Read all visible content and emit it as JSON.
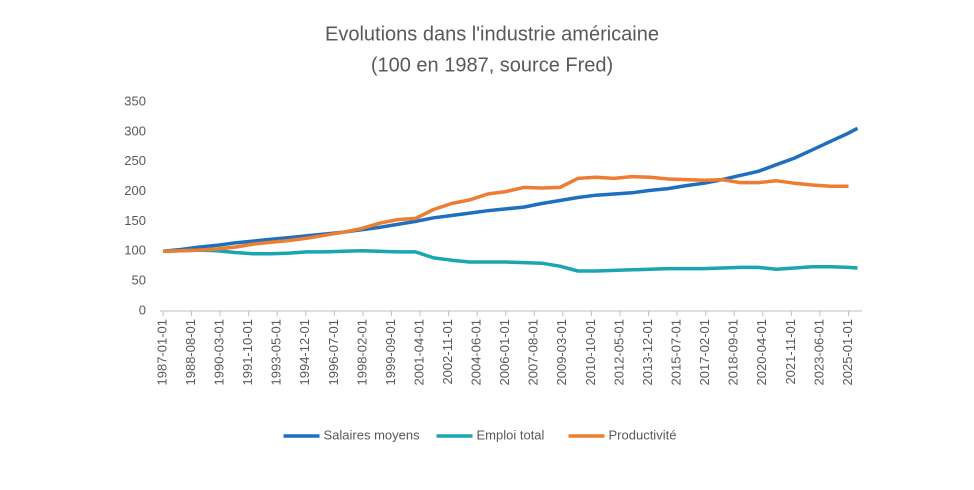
{
  "chart_data": {
    "type": "line",
    "title": "Evolutions dans l'industrie américaine",
    "subtitle": "(100 en 1987, source Fred)",
    "x": [
      "1987-01-01",
      "1988-01-01",
      "1989-01-01",
      "1990-01-01",
      "1991-01-01",
      "1992-01-01",
      "1993-01-01",
      "1994-01-01",
      "1995-01-01",
      "1996-01-01",
      "1997-01-01",
      "1998-01-01",
      "1999-01-01",
      "2000-01-01",
      "2001-01-01",
      "2002-01-01",
      "2003-01-01",
      "2004-01-01",
      "2005-01-01",
      "2006-01-01",
      "2007-01-01",
      "2008-01-01",
      "2009-01-01",
      "2010-01-01",
      "2011-01-01",
      "2012-01-01",
      "2013-01-01",
      "2014-01-01",
      "2015-01-01",
      "2016-01-01",
      "2017-01-01",
      "2018-01-01",
      "2019-01-01",
      "2020-01-01",
      "2021-01-01",
      "2022-01-01",
      "2023-01-01",
      "2024-01-01",
      "2025-01-01",
      "2025-07-01"
    ],
    "series": [
      {
        "name": "Salaires moyens",
        "color": "#1f6fbf",
        "values": [
          100,
          103,
          107,
          110,
          114,
          117,
          120,
          123,
          126,
          129,
          132,
          136,
          140,
          145,
          150,
          156,
          160,
          164,
          168,
          171,
          174,
          180,
          185,
          190,
          194,
          196,
          198,
          202,
          205,
          210,
          214,
          220,
          227,
          234,
          245,
          256,
          270,
          284,
          298,
          306
        ]
      },
      {
        "name": "Emploi total",
        "color": "#1aa5b0",
        "values": [
          100,
          101,
          102,
          101,
          98,
          96,
          96,
          97,
          99,
          99,
          100,
          101,
          100,
          99,
          99,
          89,
          85,
          82,
          82,
          82,
          81,
          80,
          75,
          67,
          67,
          68,
          69,
          70,
          71,
          71,
          71,
          72,
          73,
          73,
          70,
          72,
          74,
          74,
          73,
          72
        ]
      },
      {
        "name": "Productivité",
        "color": "#ed7d31",
        "values": [
          100,
          101,
          102,
          104,
          107,
          112,
          115,
          118,
          122,
          127,
          132,
          138,
          147,
          153,
          155,
          170,
          180,
          186,
          196,
          200,
          207,
          206,
          207,
          222,
          224,
          222,
          225,
          224,
          221,
          220,
          219,
          220,
          215,
          215,
          218,
          214,
          211,
          209,
          209,
          null
        ]
      }
    ],
    "xlim": [
      "1987-01-01",
      "2025-10-01"
    ],
    "xticks": [
      "1987-01-01",
      "1988-08-01",
      "1990-03-01",
      "1991-10-01",
      "1993-05-01",
      "1994-12-01",
      "1996-07-01",
      "1998-02-01",
      "1999-09-01",
      "2001-04-01",
      "2002-11-01",
      "2004-06-01",
      "2006-01-01",
      "2007-08-01",
      "2009-03-01",
      "2010-10-01",
      "2012-05-01",
      "2013-12-01",
      "2015-07-01",
      "2017-02-01",
      "2018-09-01",
      "2020-04-01",
      "2021-11-01",
      "2023-06-01",
      "2025-01-01"
    ],
    "ylim": [
      0,
      350
    ],
    "yticks": [
      0,
      50,
      100,
      150,
      200,
      250,
      300,
      350
    ],
    "grid": false,
    "legend": "bottom"
  }
}
